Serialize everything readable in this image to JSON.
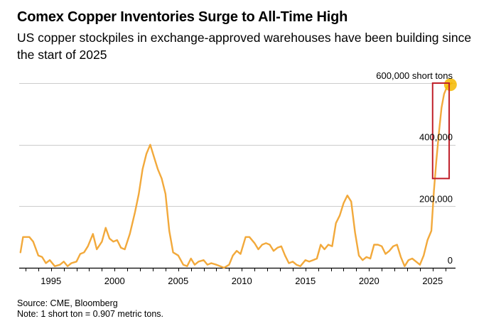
{
  "header": {
    "title": "Comex Copper Inventories Surge to All-Time High",
    "subtitle": "US copper stockpiles in exchange-approved warehouses have been building since the start of 2025"
  },
  "footer": {
    "source": "Source: CME, Bloomberg",
    "note": "Note: 1 short ton = 0.907 metric tons."
  },
  "colors": {
    "line": "#f2a93b",
    "grid": "#cccccc",
    "axis": "#000000",
    "highlight_box": "#c0202a",
    "highlight_dot": "#f5b800"
  },
  "chart_data": {
    "type": "line",
    "title": "Comex Copper Inventories Surge to All-Time High",
    "xlabel": "",
    "ylabel": "",
    "unit": "short tons",
    "xlim": [
      1992.5,
      2026.8
    ],
    "ylim": [
      0,
      600000
    ],
    "grid": true,
    "y_axis_side": "right",
    "x_ticks": [
      1995,
      2000,
      2005,
      2010,
      2015,
      2020,
      2025
    ],
    "x_tick_labels": [
      "1995",
      "2000",
      "2005",
      "2010",
      "2015",
      "2020",
      "2025"
    ],
    "y_ticks": [
      0,
      200000,
      400000,
      600000
    ],
    "y_tick_labels": [
      "0",
      "200,000",
      "400,000",
      "600,000 short tons"
    ],
    "series": [
      {
        "x": [
          1992.6,
          1992.8,
          1993.3,
          1993.6,
          1994.0,
          1994.3,
          1994.6,
          1994.9,
          1995.3,
          1995.7,
          1996.0,
          1996.3,
          1996.6,
          1997.0,
          1997.3,
          1997.6,
          1997.9,
          1998.3,
          1998.6,
          1999.0,
          1999.3,
          1999.6,
          1999.9,
          2000.2,
          2000.5,
          2000.8,
          2001.2,
          2001.6,
          2001.9,
          2002.2,
          2002.5,
          2002.8,
          2003.1,
          2003.4,
          2003.7,
          2004.0,
          2004.3,
          2004.6,
          2005.0,
          2005.4,
          2005.7,
          2006.0,
          2006.3,
          2006.6,
          2007.0,
          2007.3,
          2007.6,
          2008.0,
          2008.3,
          2008.6,
          2009.0,
          2009.3,
          2009.6,
          2009.9,
          2010.3,
          2010.6,
          2011.0,
          2011.3,
          2011.6,
          2011.9,
          2012.2,
          2012.5,
          2012.8,
          2013.1,
          2013.4,
          2013.7,
          2014.0,
          2014.3,
          2014.6,
          2015.0,
          2015.3,
          2015.6,
          2015.9,
          2016.2,
          2016.5,
          2016.8,
          2017.1,
          2017.4,
          2017.7,
          2018.0,
          2018.3,
          2018.6,
          2018.9,
          2019.2,
          2019.5,
          2019.8,
          2020.1,
          2020.4,
          2020.7,
          2021.0,
          2021.3,
          2021.6,
          2021.9,
          2022.2,
          2022.5,
          2022.8,
          2023.1,
          2023.4,
          2023.7,
          2024.0,
          2024.3,
          2024.6,
          2024.9,
          2025.1,
          2025.3,
          2025.5,
          2025.7,
          2025.9,
          2026.1,
          2026.3,
          2026.5
        ],
        "values": [
          50000,
          100000,
          100000,
          85000,
          40000,
          35000,
          15000,
          25000,
          5000,
          10000,
          20000,
          5000,
          15000,
          20000,
          45000,
          50000,
          70000,
          110000,
          60000,
          85000,
          130000,
          95000,
          85000,
          90000,
          65000,
          60000,
          110000,
          180000,
          240000,
          320000,
          370000,
          400000,
          360000,
          320000,
          290000,
          240000,
          120000,
          50000,
          40000,
          10000,
          5000,
          30000,
          10000,
          20000,
          25000,
          10000,
          15000,
          10000,
          5000,
          0,
          10000,
          40000,
          55000,
          45000,
          100000,
          100000,
          80000,
          60000,
          75000,
          80000,
          75000,
          55000,
          65000,
          70000,
          40000,
          15000,
          20000,
          10000,
          5000,
          25000,
          20000,
          25000,
          30000,
          75000,
          60000,
          75000,
          70000,
          145000,
          170000,
          210000,
          235000,
          215000,
          115000,
          40000,
          25000,
          35000,
          30000,
          75000,
          75000,
          70000,
          45000,
          55000,
          70000,
          75000,
          35000,
          5000,
          25000,
          30000,
          20000,
          10000,
          40000,
          90000,
          120000,
          250000,
          350000,
          440000,
          520000,
          565000,
          585000,
          595000,
          600000
        ]
      }
    ],
    "annotations": [
      {
        "type": "box",
        "x_range": [
          2025.0,
          2026.3
        ],
        "y_range": [
          290000,
          600000
        ]
      },
      {
        "type": "dot",
        "x": 2026.4,
        "y": 595000
      }
    ]
  }
}
